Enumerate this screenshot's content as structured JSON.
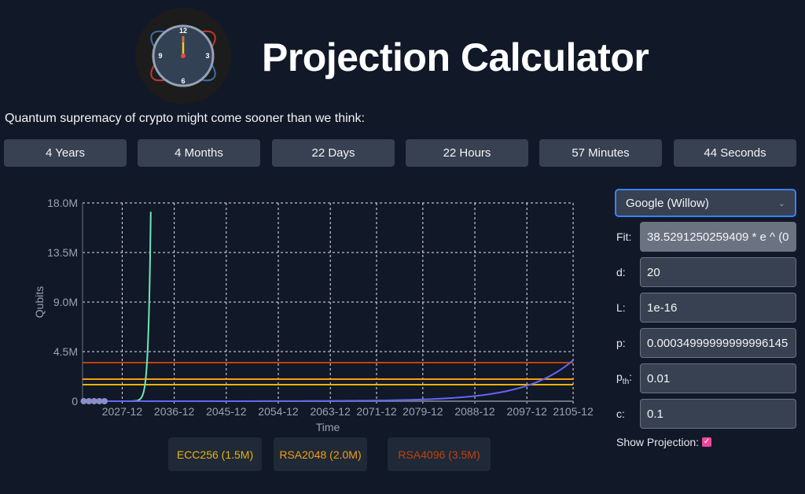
{
  "header": {
    "title": "Projection Calculator",
    "subtitle": "Quantum supremacy of crypto might come sooner than we think:",
    "logo_icon": "clock-atom-icon",
    "clock_numbers": [
      "12",
      "3",
      "6",
      "9"
    ]
  },
  "countdown": [
    {
      "label": "4 Years"
    },
    {
      "label": "4 Months"
    },
    {
      "label": "22 Days"
    },
    {
      "label": "22 Hours"
    },
    {
      "label": "57 Minutes"
    },
    {
      "label": "44 Seconds"
    }
  ],
  "chart_data": {
    "type": "line",
    "xlabel": "Time",
    "ylabel": "Qubits",
    "x_ticks": [
      "2027-12",
      "2036-12",
      "2045-12",
      "2054-12",
      "2063-12",
      "2071-12",
      "2079-12",
      "2088-12",
      "2097-12",
      "2105-12"
    ],
    "y_ticks": [
      "0",
      "4.5M",
      "9.0M",
      "13.5M",
      "18.0M"
    ],
    "ylim": [
      0,
      18
    ],
    "xlim": [
      2021.1,
      2105.95
    ],
    "grid": true,
    "thresholds": [
      {
        "name": "ECC256 (1.5M)",
        "value": 1.5,
        "color": "#eab308"
      },
      {
        "name": "RSA2048 (2.0M)",
        "value": 2.0,
        "color": "#f59e0b"
      },
      {
        "name": "RSA4096 (3.5M)",
        "value": 3.5,
        "color": "#c2410c"
      }
    ],
    "series": [
      {
        "color": "#6ee7b7",
        "x": [
          2029,
          2030,
          2030.5,
          2031,
          2031.5,
          2032,
          2032.5,
          2032.9
        ],
        "y": [
          0.0013,
          0.015,
          0.05,
          0.17,
          0.57,
          1.93,
          6.51,
          17.2
        ]
      },
      {
        "color": "#6366f1",
        "x": [
          2021.3,
          2040,
          2060,
          2070,
          2080,
          2085,
          2090,
          2095,
          2100,
          2103,
          2105.9
        ],
        "y": [
          0.0001,
          0.0012,
          0.014,
          0.046,
          0.16,
          0.29,
          0.53,
          0.98,
          1.8,
          2.6,
          3.7
        ]
      },
      {
        "color": "#8b8fc7",
        "points": true,
        "x": [
          2021.3,
          2022.2,
          2023.1,
          2024,
          2024.9
        ],
        "y": [
          0,
          0,
          0,
          0,
          0
        ]
      }
    ]
  },
  "controls": {
    "model": "Google (Willow)",
    "fields": [
      {
        "label": "Fit:",
        "value": "38.5291250259409 * e ^ (0"
      },
      {
        "label": "d:",
        "value": "20"
      },
      {
        "label": "L:",
        "value": "1e-16"
      },
      {
        "label": "p:",
        "value": "0.00034999999999996145"
      },
      {
        "label": "pth:",
        "value": "0.01"
      },
      {
        "label": "c:",
        "value": "0.1"
      }
    ],
    "show_projection_label": "Show Projection:",
    "show_projection": true
  }
}
